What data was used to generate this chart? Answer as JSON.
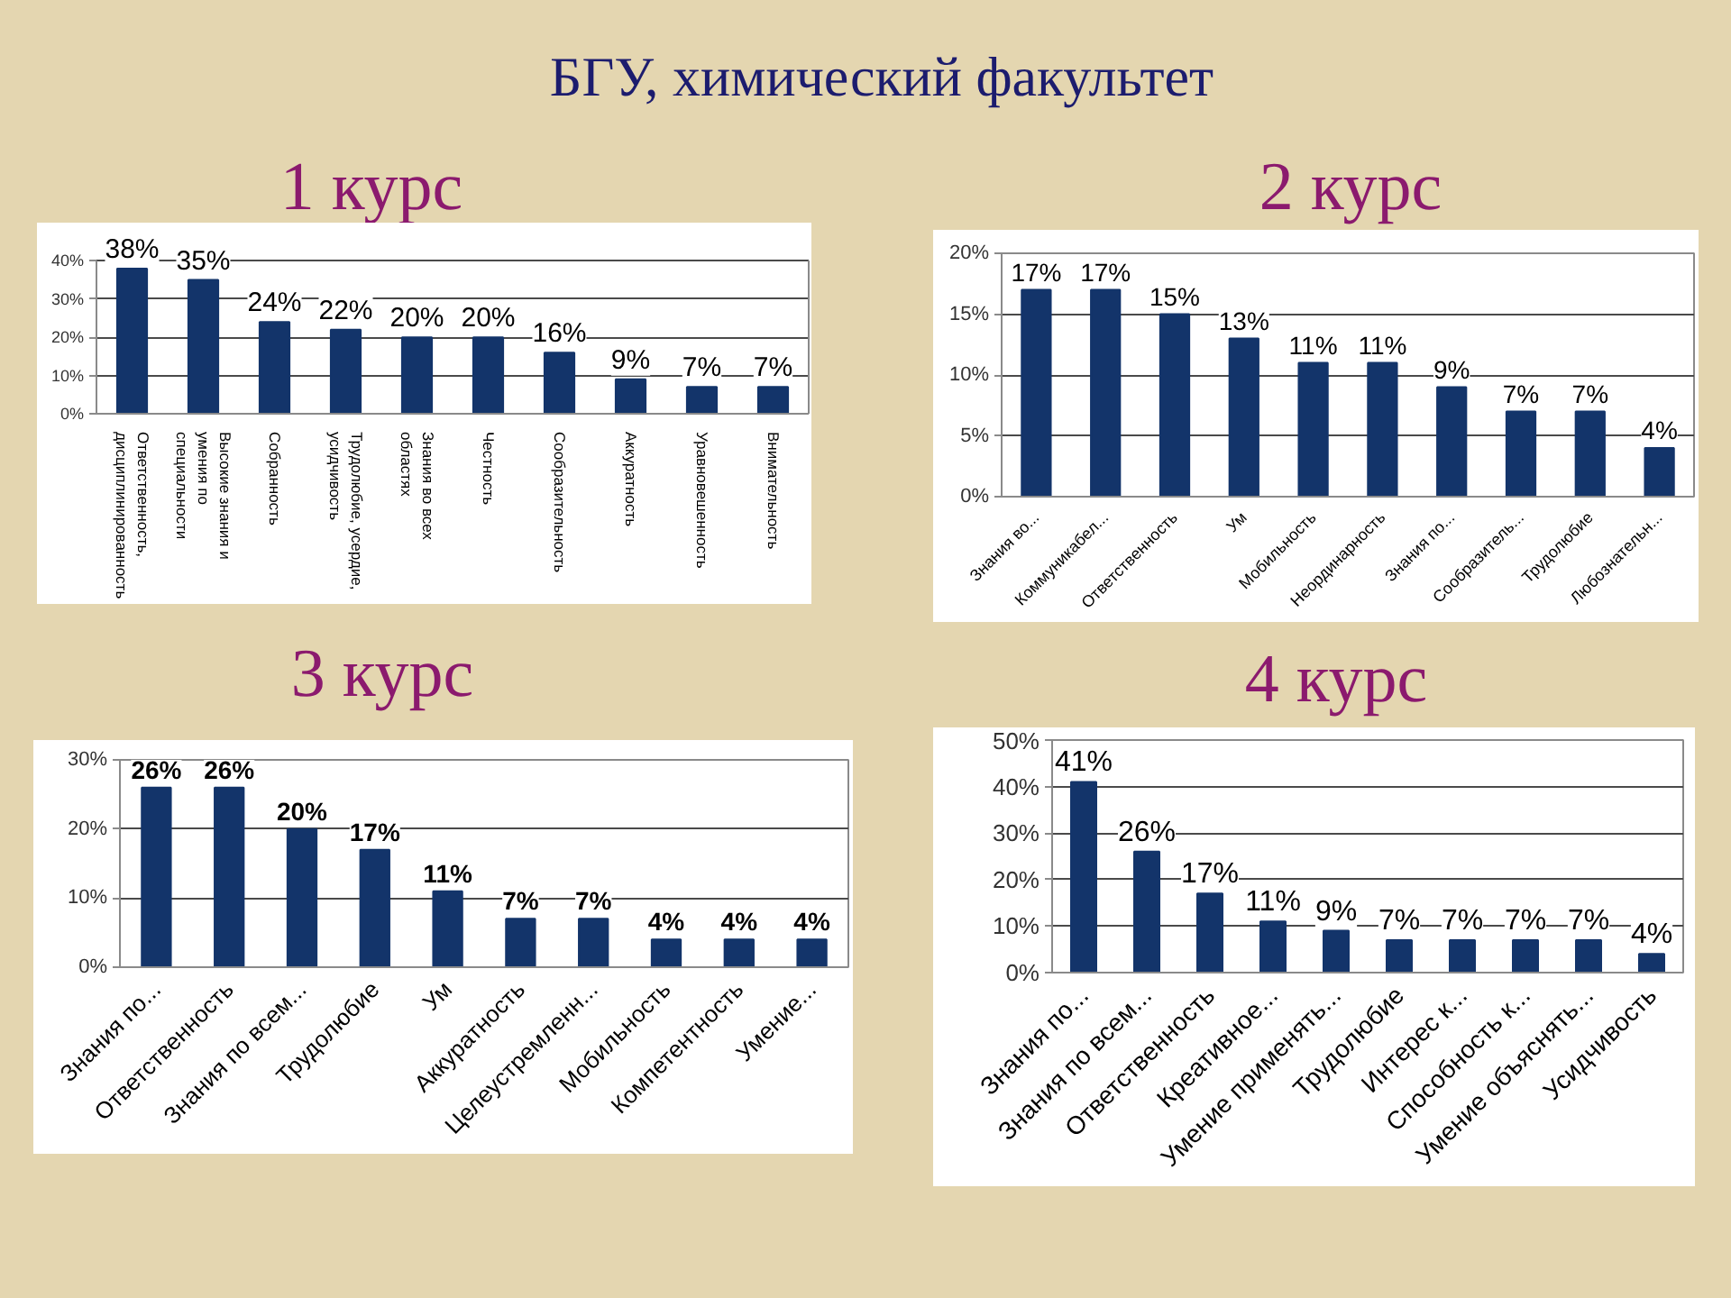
{
  "chart_data": [
    {
      "type": "bar",
      "title": "1 курс",
      "annotations": [
        "БГУ, химический факультет"
      ],
      "categories": [
        "Ответственность, дисциплинированность",
        "Высокие знания и умения по специальности",
        "Собранность",
        "Трудолюбие, усердие, усидчивость",
        "Знания во всех областях",
        "Честность",
        "Сообразительность",
        "Аккуратность",
        "Уравновешенность",
        "Внимательность"
      ],
      "values": [
        38,
        35,
        24,
        22,
        20,
        20,
        16,
        9,
        7,
        7
      ],
      "color": "#13346a",
      "value_labels": [
        "38%",
        "35%",
        "24%",
        "22%",
        "20%",
        "20%",
        "16%",
        "9%",
        "7%",
        "7%"
      ],
      "ylim": [
        0,
        40
      ],
      "yticks": [
        {
          "value": 0,
          "label": "0%"
        },
        {
          "value": 10,
          "label": "10%"
        },
        {
          "value": 20,
          "label": "20%"
        },
        {
          "value": 30,
          "label": "30%"
        },
        {
          "value": 40,
          "label": "40%"
        }
      ],
      "grid": "y"
    },
    {
      "type": "bar",
      "title": "2 курс",
      "categories": [
        "Знания во...",
        "Коммуникабел...",
        "Ответственность",
        "Ум",
        "Мобильность",
        "Неординарность",
        "Знания по...",
        "Сообразитель...",
        "Трудолюбие",
        "Любознательн..."
      ],
      "values": [
        17,
        17,
        15,
        13,
        11,
        11,
        9,
        7,
        7,
        4
      ],
      "color": "#13346a",
      "value_labels": [
        "17%",
        "17%",
        "15%",
        "13%",
        "11%",
        "11%",
        "9%",
        "7%",
        "7%",
        "4%"
      ],
      "ylim": [
        0,
        20
      ],
      "yticks": [
        {
          "value": 0,
          "label": "0%"
        },
        {
          "value": 5,
          "label": "5%"
        },
        {
          "value": 10,
          "label": "10%"
        },
        {
          "value": 15,
          "label": "15%"
        },
        {
          "value": 20,
          "label": "20%"
        }
      ],
      "grid": "y"
    },
    {
      "type": "bar",
      "title": "3 курс",
      "categories": [
        "Знания по...",
        "Ответственность",
        "Знания по всем...",
        "Трудолюбие",
        "Ум",
        "Аккуратность",
        "Целеустремленн...",
        "Мобильность",
        "Компетентность",
        "Умение..."
      ],
      "values": [
        26,
        26,
        20,
        17,
        11,
        7,
        7,
        4,
        4,
        4
      ],
      "color": "#13346a",
      "value_labels": [
        "26%",
        "26%",
        "20%",
        "17%",
        "11%",
        "7%",
        "7%",
        "4%",
        "4%",
        "4%"
      ],
      "ylim": [
        0,
        30
      ],
      "yticks": [
        {
          "value": 0,
          "label": "0%"
        },
        {
          "value": 10,
          "label": "10%"
        },
        {
          "value": 20,
          "label": "20%"
        },
        {
          "value": 30,
          "label": "30%"
        }
      ],
      "grid": "y"
    },
    {
      "type": "bar",
      "title": "4 курс",
      "categories": [
        "Знания по...",
        "Знания по всем...",
        "Ответственность",
        "Креативное...",
        "Умение применять...",
        "Трудолюбие",
        "Интерес к...",
        "Способность к...",
        "Умение объяснять...",
        "Усидчивость"
      ],
      "values": [
        41,
        26,
        17,
        11,
        9,
        7,
        7,
        7,
        7,
        4
      ],
      "color": "#13346a",
      "value_labels": [
        "41%",
        "26%",
        "17%",
        "11%",
        "9%",
        "7%",
        "7%",
        "7%",
        "7%",
        "4%"
      ],
      "ylim": [
        0,
        50
      ],
      "yticks": [
        {
          "value": 0,
          "label": "0%"
        },
        {
          "value": 10,
          "label": "10%"
        },
        {
          "value": 20,
          "label": "20%"
        },
        {
          "value": 30,
          "label": "30%"
        },
        {
          "value": 40,
          "label": "40%"
        },
        {
          "value": 50,
          "label": "50%"
        }
      ],
      "grid": "y"
    }
  ]
}
